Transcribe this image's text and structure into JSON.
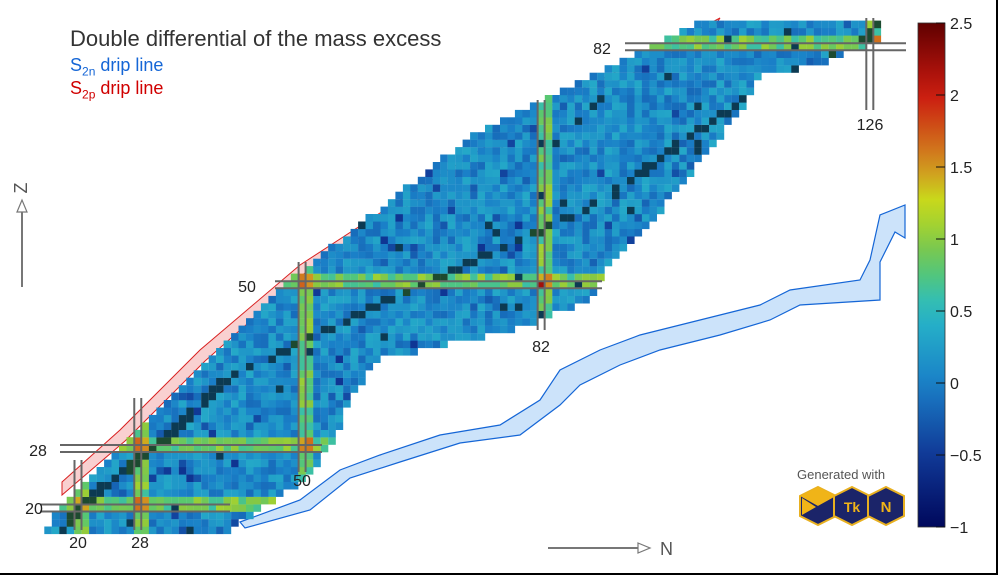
{
  "chart_data": {
    "type": "heatmap",
    "title": "Double differential of the mass excess",
    "legend": [
      {
        "base": "S",
        "sub": "2n",
        "text": "drip line",
        "color": "#1566d6"
      },
      {
        "base": "S",
        "sub": "2p",
        "text": "drip line",
        "color": "#d00000"
      }
    ],
    "xlabel": "N",
    "ylabel": "Z",
    "colorbar": {
      "range": [
        -1,
        2.5
      ],
      "ticks": [
        "2.5",
        "2",
        "1.5",
        "1",
        "0.5",
        "0",
        "−0.5",
        "−1"
      ],
      "tick_values": [
        2.5,
        2,
        1.5,
        1,
        0.5,
        0,
        -0.5,
        -1
      ]
    },
    "magic_numbers": {
      "N": [
        {
          "value": 20,
          "label": "20"
        },
        {
          "value": 28,
          "label": "28"
        },
        {
          "value": 50,
          "label": "50"
        },
        {
          "value": 82,
          "label": "82"
        },
        {
          "value": 126,
          "label": "126"
        }
      ],
      "Z": [
        {
          "value": 20,
          "label": "20"
        },
        {
          "value": 28,
          "label": "28"
        },
        {
          "value": 50,
          "label": "50"
        },
        {
          "value": 82,
          "label": "82"
        }
      ]
    },
    "nuclide_region": {
      "n_min_vs_z": [
        [
          17,
          16
        ],
        [
          20,
          18
        ],
        [
          28,
          26
        ],
        [
          50,
          48
        ],
        [
          70,
          73
        ],
        [
          82,
          97
        ],
        [
          86,
          105
        ]
      ],
      "n_max_vs_z": [
        [
          17,
          40
        ],
        [
          24,
          50
        ],
        [
          29,
          54
        ],
        [
          35,
          56
        ],
        [
          40,
          60
        ],
        [
          44,
          78
        ],
        [
          48,
          88
        ],
        [
          52,
          90
        ],
        [
          58,
          96
        ],
        [
          63,
          100
        ],
        [
          68,
          104
        ],
        [
          73,
          108
        ],
        [
          78,
          111
        ],
        [
          80,
          120
        ],
        [
          83,
          127
        ],
        [
          86,
          127
        ]
      ],
      "stable_valley_vs_z": [
        [
          17,
          18
        ],
        [
          20,
          20
        ],
        [
          28,
          30
        ],
        [
          38,
          41
        ],
        [
          50,
          66
        ],
        [
          61,
          90
        ],
        [
          70,
          102
        ],
        [
          80,
          117
        ],
        [
          82,
          125
        ],
        [
          86,
          127
        ]
      ]
    },
    "hotspots": [
      {
        "N": 82,
        "Z": 50,
        "value": 2.2
      },
      {
        "N": 50,
        "Z": 50,
        "value": 1.7
      },
      {
        "N": 126,
        "Z": 82,
        "value": 2.4
      }
    ]
  },
  "branding": {
    "generated_with": "Generated with",
    "logo_text": [
      "Tk",
      "N"
    ]
  }
}
